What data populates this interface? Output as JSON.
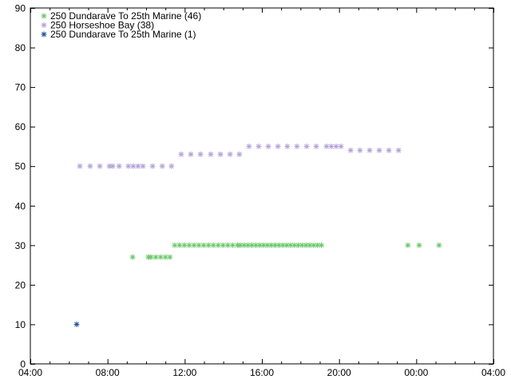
{
  "chart_data": {
    "type": "scatter",
    "title": "",
    "xlabel": "",
    "ylabel": "",
    "xlim": [
      "04:00",
      "04:00 (next day)"
    ],
    "ylim": [
      0,
      90
    ],
    "x_ticks": [
      "04:00",
      "08:00",
      "12:00",
      "16:00",
      "20:00",
      "00:00",
      "04:00"
    ],
    "y_ticks": [
      "0",
      "10",
      "20",
      "30",
      "40",
      "50",
      "60",
      "70",
      "80",
      "90"
    ],
    "grid": false,
    "legend_position": "top-left",
    "marker": "asterisk",
    "series": [
      {
        "name": "250 Dundarave To 25th  Marine (46)",
        "color": "#66c766",
        "points": [
          [
            "09:18",
            27
          ],
          [
            "10:07",
            27
          ],
          [
            "10:15",
            27
          ],
          [
            "10:30",
            27
          ],
          [
            "10:45",
            27
          ],
          [
            "11:00",
            27
          ],
          [
            "11:14",
            27
          ],
          [
            "11:29",
            30
          ],
          [
            "11:44",
            30
          ],
          [
            "11:59",
            30
          ],
          [
            "12:14",
            30
          ],
          [
            "12:29",
            30
          ],
          [
            "12:44",
            30
          ],
          [
            "12:59",
            30
          ],
          [
            "13:14",
            30
          ],
          [
            "13:29",
            30
          ],
          [
            "13:44",
            30
          ],
          [
            "13:59",
            30
          ],
          [
            "14:14",
            30
          ],
          [
            "14:29",
            30
          ],
          [
            "14:44",
            30
          ],
          [
            "14:53",
            30
          ],
          [
            "15:05",
            30
          ],
          [
            "15:17",
            30
          ],
          [
            "15:29",
            30
          ],
          [
            "15:41",
            30
          ],
          [
            "15:53",
            30
          ],
          [
            "16:05",
            30
          ],
          [
            "16:17",
            30
          ],
          [
            "16:29",
            30
          ],
          [
            "16:41",
            30
          ],
          [
            "16:53",
            30
          ],
          [
            "17:05",
            30
          ],
          [
            "17:17",
            30
          ],
          [
            "17:29",
            30
          ],
          [
            "17:41",
            30
          ],
          [
            "17:53",
            30
          ],
          [
            "18:05",
            30
          ],
          [
            "18:17",
            30
          ],
          [
            "18:29",
            30
          ],
          [
            "18:41",
            30
          ],
          [
            "18:53",
            30
          ],
          [
            "19:05",
            30
          ],
          [
            "23:34",
            30
          ],
          [
            "00:09",
            30
          ],
          [
            "01:11",
            30
          ]
        ]
      },
      {
        "name": "250 Horseshoe Bay (38)",
        "color": "#b4a0d6",
        "points": [
          [
            "06:34",
            50
          ],
          [
            "07:06",
            50
          ],
          [
            "07:36",
            50
          ],
          [
            "08:06",
            50
          ],
          [
            "08:16",
            50
          ],
          [
            "08:36",
            50
          ],
          [
            "09:05",
            50
          ],
          [
            "09:20",
            50
          ],
          [
            "09:35",
            50
          ],
          [
            "09:50",
            50
          ],
          [
            "10:20",
            50
          ],
          [
            "10:50",
            50
          ],
          [
            "11:19",
            50
          ],
          [
            "11:49",
            53
          ],
          [
            "12:19",
            53
          ],
          [
            "12:49",
            53
          ],
          [
            "13:21",
            53
          ],
          [
            "13:51",
            53
          ],
          [
            "14:21",
            53
          ],
          [
            "14:50",
            53
          ],
          [
            "15:20",
            55
          ],
          [
            "15:50",
            55
          ],
          [
            "16:20",
            55
          ],
          [
            "16:50",
            55
          ],
          [
            "17:19",
            55
          ],
          [
            "17:49",
            55
          ],
          [
            "18:19",
            55
          ],
          [
            "18:49",
            55
          ],
          [
            "19:21",
            55
          ],
          [
            "19:36",
            55
          ],
          [
            "19:51",
            55
          ],
          [
            "20:06",
            55
          ],
          [
            "20:36",
            54
          ],
          [
            "21:05",
            54
          ],
          [
            "21:35",
            54
          ],
          [
            "22:05",
            54
          ],
          [
            "22:35",
            54
          ],
          [
            "23:05",
            54
          ]
        ]
      },
      {
        "name": "250 Dundarave To 25th  Marine (1)",
        "color": "#1f4e9a",
        "points": [
          [
            "06:24",
            10
          ]
        ]
      }
    ]
  }
}
